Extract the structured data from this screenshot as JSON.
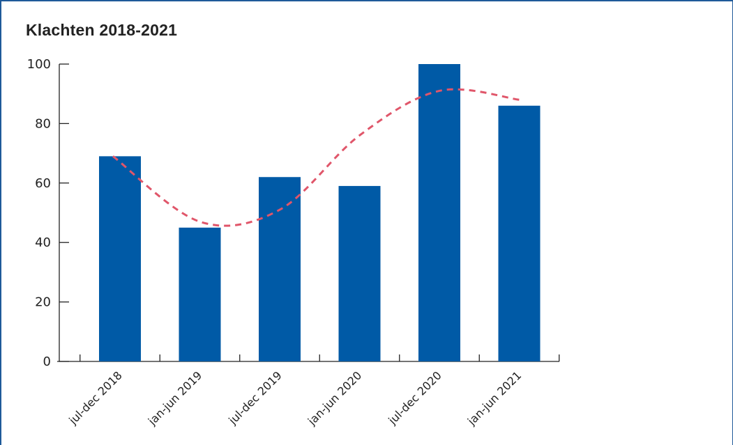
{
  "chart_data": {
    "type": "bar",
    "title": "Klachten 2018-2021",
    "xlabel": "",
    "ylabel": "",
    "categories": [
      "jul-dec 2018",
      "jan-jun 2019",
      "jul-dec 2019",
      "jan-jun 2020",
      "jul-dec 2020",
      "jan-jun 2021"
    ],
    "values": [
      69,
      45,
      62,
      59,
      100,
      86
    ],
    "ylim": [
      0,
      100
    ],
    "yticks": [
      0,
      20,
      40,
      60,
      80,
      100
    ],
    "grid": false,
    "bar_color": "#005aa6",
    "trendline": {
      "style": "dashed",
      "color": "#e0566a",
      "values": [
        69,
        47,
        51,
        76,
        91,
        88
      ]
    }
  }
}
